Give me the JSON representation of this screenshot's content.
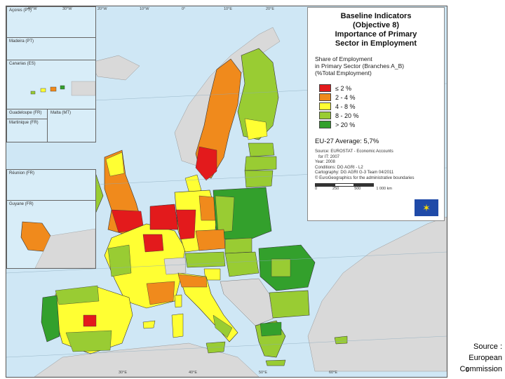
{
  "legend": {
    "title_lines": [
      "Baseline Indicators",
      "(Objective 8)",
      "Importance of Primary",
      "Sector in Employment"
    ],
    "subtitle_lines": [
      "Share of Employment",
      "in Primary Sector (Branches A_B)",
      "(%Total Employment)"
    ],
    "classes": [
      {
        "label": "≤ 2 %",
        "color": "#e31a1c"
      },
      {
        "label": "2 - 4 %",
        "color": "#f08a1c"
      },
      {
        "label": "4 - 8 %",
        "color": "#ffff33"
      },
      {
        "label": "8 - 20 %",
        "color": "#99cc33"
      },
      {
        "label": "> 20 %",
        "color": "#33a02c"
      }
    ],
    "average": "EU-27 Average: 5,7%",
    "source_lines": [
      "Source: EUROSTAT - Economic Accounts",
      "   for IT: 2007",
      "Year: 2008",
      "Conditions: DG AGRI - L2",
      "Cartography: DG AGRI G-3 Team 04/2011",
      "© EuroGeographics for the administrative boundaries"
    ],
    "scale_labels": [
      "0",
      "250",
      "500",
      "1 000 km"
    ],
    "flag_icon": "eu-flag-icon"
  },
  "insets": [
    {
      "label": "Açores (PT)"
    },
    {
      "label": "Madeira (PT)"
    },
    {
      "label": "Canarias (ES)"
    },
    {
      "label": "Guadeloupe (FR)"
    },
    {
      "label": "Martinique (FR)"
    },
    {
      "label": "Malta (MT)"
    },
    {
      "label": "Réunion (FR)"
    },
    {
      "label": "Guyane (FR)"
    }
  ],
  "graticule_labels": [
    "40°W",
    "30°W",
    "20°W",
    "10°W",
    "0°",
    "10°E",
    "20°E",
    "30°E",
    "40°E",
    "50°E",
    "60°E"
  ],
  "source_note_lines": [
    "Source :",
    "European",
    "Commission"
  ],
  "page_number": "5",
  "water_color": "#cfe7f5",
  "land_outside_color": "#d9d9d9"
}
